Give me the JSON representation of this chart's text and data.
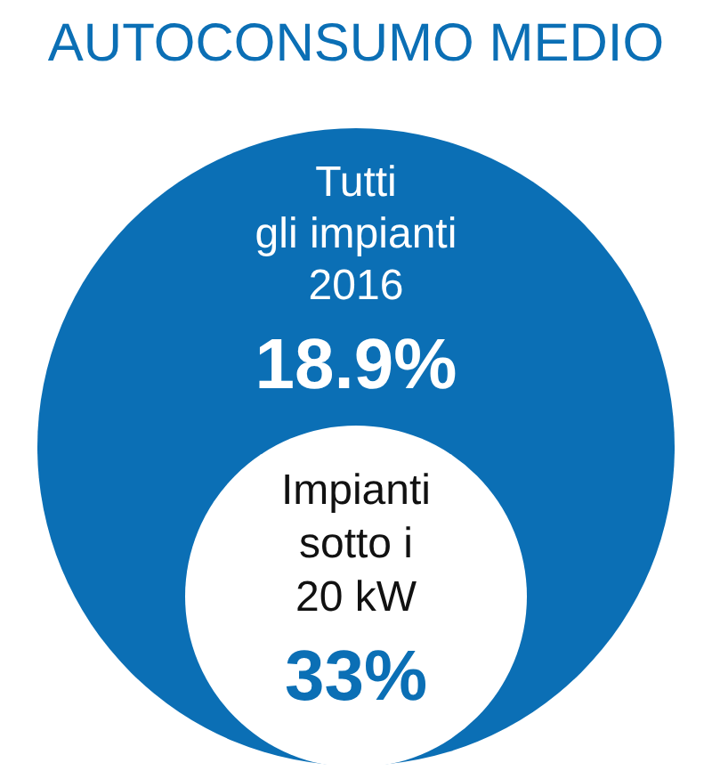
{
  "chart_data": {
    "type": "other",
    "title": "AUTOCONSUMO MEDIO",
    "categories": [
      "Tutti\ngli impianti\n2016",
      "Impianti\nsotto i\n20 kW"
    ],
    "values": [
      18.9,
      33
    ],
    "value_labels": [
      "18.9%",
      "33%"
    ],
    "colors": [
      "#0b6fb5",
      "#ffffff"
    ]
  }
}
